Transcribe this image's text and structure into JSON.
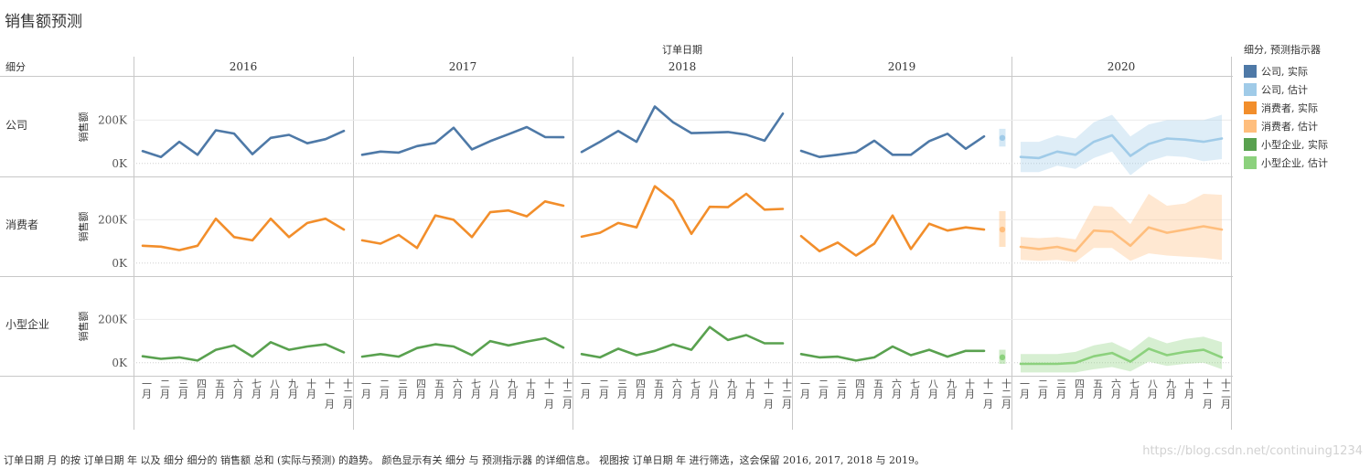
{
  "title": "销售额预测",
  "chart_data": {
    "type": "line",
    "title": "销售额预测",
    "column_axis_title": "订单日期",
    "row_header": "细分",
    "years": [
      "2016",
      "2017",
      "2018",
      "2019",
      "2020"
    ],
    "months": [
      "一月",
      "二月",
      "三月",
      "四月",
      "五月",
      "六月",
      "七月",
      "八月",
      "九月",
      "十月",
      "十一月",
      "十二月"
    ],
    "ylabel": "销售额",
    "y_ticks": [
      {
        "value": 0,
        "label": "0K"
      },
      {
        "value": 200000,
        "label": "200K"
      }
    ],
    "ylim": [
      -60000,
      400000
    ],
    "segments": [
      {
        "name": "公司",
        "actual_color": "#4e79a7",
        "forecast_color": "#a0cbe8",
        "actual": [
          [
            57000,
            30000,
            100000,
            40000,
            153000,
            138000,
            43000,
            118000,
            132000,
            93000,
            112000,
            150000
          ],
          [
            40000,
            55000,
            50000,
            80000,
            95000,
            165000,
            65000,
            103000,
            135000,
            168000,
            122000,
            121000
          ],
          [
            53000,
            100000,
            150000,
            100000,
            263000,
            190000,
            140000,
            142000,
            145000,
            133000,
            105000,
            230000
          ],
          [
            58000,
            30000,
            40000,
            52000,
            105000,
            40000,
            40000,
            103000,
            137000,
            68000,
            125000
          ],
          []
        ],
        "actual_2019_dec_dot": 118000,
        "actual_2019_dec_range": [
          78000,
          160000
        ],
        "forecast": [
          30000,
          25000,
          55000,
          40000,
          100000,
          130000,
          35000,
          90000,
          115000,
          110000,
          100000,
          115000
        ],
        "forecast_low": [
          -40000,
          -40000,
          -10000,
          -25000,
          25000,
          55000,
          -55000,
          10000,
          35000,
          30000,
          10000,
          20000
        ],
        "forecast_high": [
          100000,
          100000,
          130000,
          115000,
          190000,
          225000,
          125000,
          180000,
          200000,
          200000,
          200000,
          225000
        ]
      },
      {
        "name": "消费者",
        "actual_color": "#f28e2b",
        "forecast_color": "#ffbe7d",
        "actual": [
          [
            80000,
            76000,
            60000,
            80000,
            205000,
            120000,
            105000,
            205000,
            120000,
            185000,
            205000,
            155000
          ],
          [
            105000,
            90000,
            130000,
            70000,
            220000,
            200000,
            120000,
            235000,
            243000,
            216000,
            285000,
            265000
          ],
          [
            122000,
            140000,
            185000,
            165000,
            355000,
            288000,
            135000,
            260000,
            258000,
            320000,
            247000,
            250000
          ],
          [
            125000,
            55000,
            95000,
            35000,
            90000,
            220000,
            65000,
            182000,
            150000,
            165000,
            155000
          ],
          []
        ],
        "actual_2019_dec_dot": 155000,
        "actual_2019_dec_range": [
          75000,
          240000
        ],
        "forecast": [
          75000,
          65000,
          75000,
          55000,
          150000,
          145000,
          80000,
          165000,
          140000,
          155000,
          170000,
          155000
        ],
        "forecast_low": [
          15000,
          10000,
          15000,
          5000,
          70000,
          70000,
          10000,
          45000,
          35000,
          30000,
          25000,
          15000
        ],
        "forecast_high": [
          120000,
          115000,
          120000,
          110000,
          265000,
          260000,
          180000,
          320000,
          265000,
          275000,
          320000,
          315000
        ]
      },
      {
        "name": "小型企业",
        "actual_color": "#59a14f",
        "forecast_color": "#8cd17d",
        "actual": [
          [
            30000,
            18000,
            25000,
            10000,
            60000,
            80000,
            28000,
            95000,
            60000,
            75000,
            85000,
            48000
          ],
          [
            28000,
            40000,
            28000,
            68000,
            85000,
            75000,
            35000,
            100000,
            80000,
            98000,
            113000,
            70000
          ],
          [
            40000,
            25000,
            65000,
            35000,
            55000,
            85000,
            60000,
            165000,
            105000,
            128000,
            90000,
            90000
          ],
          [
            40000,
            25000,
            28000,
            10000,
            25000,
            75000,
            35000,
            60000,
            28000,
            55000,
            55000
          ],
          []
        ],
        "actual_2019_dec_dot": 25000,
        "actual_2019_dec_range": [
          -5000,
          60000
        ],
        "forecast": [
          -5000,
          -5000,
          -5000,
          0,
          30000,
          45000,
          5000,
          65000,
          35000,
          50000,
          60000,
          25000
        ],
        "forecast_low": [
          -45000,
          -45000,
          -45000,
          -45000,
          -30000,
          -20000,
          -40000,
          5000,
          -15000,
          -5000,
          0,
          -30000
        ],
        "forecast_high": [
          40000,
          40000,
          40000,
          50000,
          80000,
          95000,
          55000,
          120000,
          90000,
          110000,
          120000,
          95000
        ]
      }
    ],
    "legend_title": "细分, 预测指示器",
    "legend": [
      {
        "label": "公司, 实际",
        "color": "#4e79a7"
      },
      {
        "label": "公司, 估计",
        "color": "#a0cbe8"
      },
      {
        "label": "消费者, 实际",
        "color": "#f28e2b"
      },
      {
        "label": "消费者, 估计",
        "color": "#ffbe7d"
      },
      {
        "label": "小型企业, 实际",
        "color": "#59a14f"
      },
      {
        "label": "小型企业, 估计",
        "color": "#8cd17d"
      }
    ]
  },
  "caption": "订单日期 月 的按 订单日期 年 以及 细分 细分的 销售额 总和 (实际与预测) 的趋势。 颜色显示有关 细分 与 预测指示器 的详细信息。 视图按 订单日期 年 进行筛选，这会保留 2016, 2017, 2018 与 2019。",
  "watermark": "https://blog.csdn.net/continuing1234"
}
